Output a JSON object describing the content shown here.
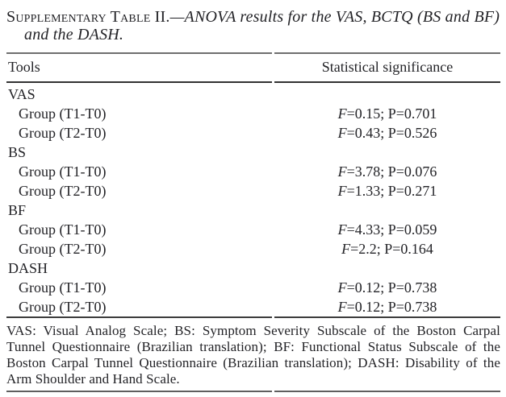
{
  "colors": {
    "text": "#232327",
    "rule": "#4d4d4d",
    "background": "#ffffff"
  },
  "caption": {
    "label": "Supplementary Table II.",
    "title": "—ANOVA results for the VAS, BCTQ (BS and BF) and the DASH."
  },
  "table": {
    "headers": [
      "Tools",
      "Statistical significance"
    ],
    "value_labels": {
      "f": "F",
      "p": "P"
    },
    "sections": [
      {
        "name": "VAS",
        "rows": [
          {
            "label": "Group (T1-T0)",
            "F": "0.15",
            "P": "0.701"
          },
          {
            "label": "Group (T2-T0)",
            "F": "0.43",
            "P": "0.526"
          }
        ]
      },
      {
        "name": "BS",
        "rows": [
          {
            "label": "Group (T1-T0)",
            "F": "3.78",
            "P": "0.076"
          },
          {
            "label": "Group (T2-T0)",
            "F": "1.33",
            "P": "0.271"
          }
        ]
      },
      {
        "name": "BF",
        "rows": [
          {
            "label": "Group (T1-T0)",
            "F": "4.33",
            "P": "0.059"
          },
          {
            "label": "Group (T2-T0)",
            "F": "2.2",
            "P": "0.164"
          }
        ]
      },
      {
        "name": "DASH",
        "rows": [
          {
            "label": "Group (T1-T0)",
            "F": "0.12",
            "P": "0.738"
          },
          {
            "label": "Group (T2-T0)",
            "F": "0.12",
            "P": "0.738"
          }
        ]
      }
    ]
  },
  "footnote": "VAS: Visual Analog Scale; BS: Symptom Severity Subscale of the Boston Carpal Tunnel Questionnaire (Brazilian translation); BF: Functional Status Subscale of the Boston Carpal Tunnel Questionnaire (Brazilian translation); DASH: Disability of the Arm Shoulder and Hand Scale."
}
